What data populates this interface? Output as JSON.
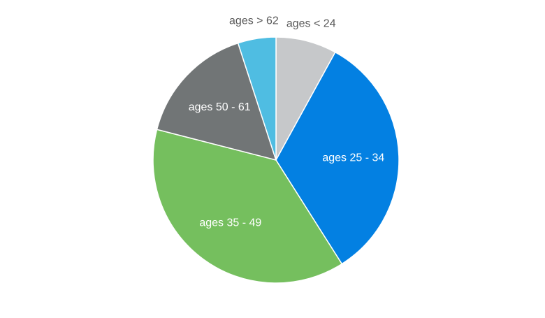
{
  "chart_data": {
    "type": "pie",
    "title": "",
    "start_angle_deg": 0,
    "direction": "clockwise",
    "slices": [
      {
        "label": "ages < 24",
        "value": 8,
        "color": "#c6c8ca",
        "label_color": "#595959",
        "label_outside": true
      },
      {
        "label": "ages 25 - 34",
        "value": 33,
        "color": "#0380e2",
        "label_color": "#ffffff",
        "label_outside": false
      },
      {
        "label": "ages 35 - 49",
        "value": 38,
        "color": "#75bf5e",
        "label_color": "#ffffff",
        "label_outside": false
      },
      {
        "label": "ages 50 - 61",
        "value": 16,
        "color": "#717576",
        "label_color": "#ffffff",
        "label_outside": false
      },
      {
        "label": "ages > 62",
        "value": 5,
        "color": "#4fbde2",
        "label_color": "#595959",
        "label_outside": true
      }
    ]
  }
}
